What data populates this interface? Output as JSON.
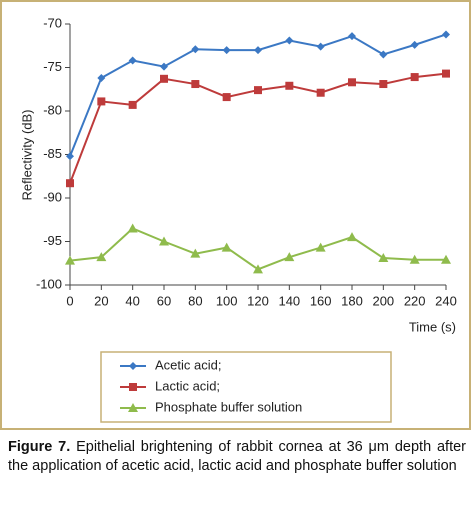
{
  "chart_data": {
    "type": "line",
    "x_label": "Time (s)",
    "y_label": "Reflectivity (dB)",
    "x": [
      0,
      20,
      40,
      60,
      80,
      100,
      120,
      140,
      160,
      180,
      200,
      220,
      240
    ],
    "xlim": [
      0,
      240
    ],
    "xticks": [
      0,
      20,
      40,
      60,
      80,
      100,
      120,
      140,
      160,
      180,
      200,
      220,
      240
    ],
    "ylim": [
      -100,
      -70
    ],
    "yticks": [
      -100,
      -95,
      -90,
      -85,
      -80,
      -75,
      -70
    ],
    "grid": false,
    "series": [
      {
        "name": "Acetic acid;",
        "color": "#3b78c4",
        "marker": "diamond",
        "values": [
          -85.2,
          -76.2,
          -74.2,
          -74.9,
          -72.9,
          -73.0,
          -73.0,
          -71.9,
          -72.6,
          -71.4,
          -73.5,
          -72.4,
          -71.2
        ]
      },
      {
        "name": "Lactic acid;",
        "color": "#be3b3b",
        "marker": "square",
        "values": [
          -88.3,
          -78.9,
          -79.3,
          -76.3,
          -76.9,
          -78.4,
          -77.6,
          -77.1,
          -77.9,
          -76.7,
          -76.9,
          -76.1,
          -75.7
        ]
      },
      {
        "name": "Phosphate buffer solution",
        "color": "#8fbb4c",
        "marker": "triangle",
        "values": [
          -97.2,
          -96.8,
          -93.5,
          -95.0,
          -96.4,
          -95.7,
          -98.2,
          -96.8,
          -95.7,
          -94.5,
          -96.9,
          -97.1,
          -97.1
        ]
      }
    ]
  },
  "caption": {
    "label": "Figure 7.",
    "text": " Epithelial brightening of rabbit cornea at 36 μm depth after the application of acetic acid, lactic acid and phosphate buffer solution"
  }
}
